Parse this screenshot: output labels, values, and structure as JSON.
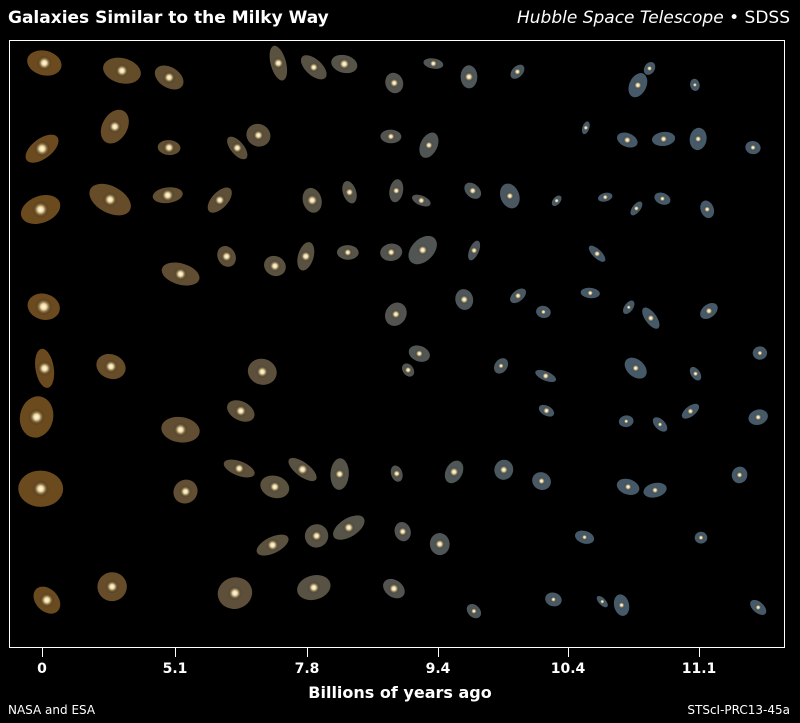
{
  "header": {
    "title": "Galaxies Similar to the Milky Way",
    "credit_italic": "Hubble Space Telescope",
    "credit_bullet": "•",
    "credit_plain": "SDSS"
  },
  "axis": {
    "label": "Billions of years ago",
    "ticks": [
      "0",
      "5.1",
      "7.8",
      "9.4",
      "10.4",
      "11.1"
    ]
  },
  "footer": {
    "left": "NASA and ESA",
    "right": "STScI-PRC13-45a"
  },
  "colors": {
    "background": "#000000",
    "near_galaxies": "#f2a23a",
    "far_galaxies": "#9cc6e6"
  }
}
